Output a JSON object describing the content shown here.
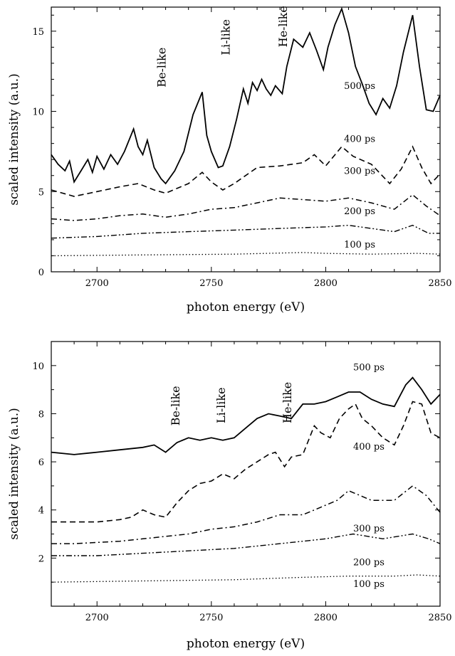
{
  "chart_data": [
    {
      "type": "line",
      "xlabel": "photon energy (eV)",
      "ylabel": "scaled intensity (a.u.)",
      "xlim": [
        2680,
        2850
      ],
      "ylim": [
        0,
        16.5
      ],
      "xticks": [
        2700,
        2750,
        2800,
        2850
      ],
      "yticks": [
        0,
        5,
        10,
        15
      ],
      "annotations": [
        {
          "text": "Be-like",
          "x": 2730,
          "y": 11.5
        },
        {
          "text": "Li-like",
          "x": 2758,
          "y": 13.5
        },
        {
          "text": "He-like",
          "x": 2783,
          "y": 14.0
        }
      ],
      "series": [
        {
          "name": "500 ps",
          "label_x": 2808,
          "label_y": 11.4,
          "style": "solid",
          "x": [
            2680,
            2683,
            2686,
            2688,
            2690,
            2693,
            2696,
            2698,
            2700,
            2703,
            2706,
            2709,
            2712,
            2716,
            2718,
            2720,
            2722,
            2725,
            2728,
            2730,
            2734,
            2738,
            2742,
            2746,
            2748,
            2750,
            2753,
            2755,
            2758,
            2761,
            2764,
            2766,
            2768,
            2770,
            2772,
            2774,
            2776,
            2778,
            2781,
            2783,
            2786,
            2790,
            2793,
            2796,
            2799,
            2801,
            2804,
            2807,
            2810,
            2813,
            2816,
            2819,
            2822,
            2825,
            2828,
            2831,
            2834,
            2838,
            2841,
            2844,
            2847,
            2850
          ],
          "y": [
            7.3,
            6.7,
            6.3,
            6.9,
            5.6,
            6.3,
            7.0,
            6.2,
            7.2,
            6.4,
            7.3,
            6.7,
            7.5,
            8.9,
            7.8,
            7.3,
            8.2,
            6.5,
            5.8,
            5.5,
            6.3,
            7.5,
            9.8,
            11.2,
            8.5,
            7.5,
            6.5,
            6.6,
            7.8,
            9.5,
            11.4,
            10.5,
            11.8,
            11.3,
            12.0,
            11.4,
            11.0,
            11.6,
            11.1,
            12.8,
            14.5,
            14.0,
            14.9,
            13.8,
            12.6,
            14.0,
            15.4,
            16.4,
            14.9,
            12.8,
            11.7,
            10.5,
            9.8,
            10.8,
            10.2,
            11.6,
            13.7,
            16.0,
            12.8,
            10.1,
            10.0,
            11.0
          ]
        },
        {
          "name": "400 ps",
          "label_x": 2808,
          "label_y": 8.1,
          "style": "dash",
          "x": [
            2680,
            2690,
            2700,
            2710,
            2718,
            2725,
            2730,
            2740,
            2746,
            2750,
            2755,
            2760,
            2765,
            2770,
            2780,
            2790,
            2795,
            2800,
            2807,
            2812,
            2820,
            2828,
            2833,
            2838,
            2842,
            2846,
            2850
          ],
          "y": [
            5.1,
            4.7,
            5.0,
            5.3,
            5.5,
            5.1,
            4.9,
            5.5,
            6.2,
            5.6,
            5.1,
            5.5,
            6.0,
            6.5,
            6.6,
            6.8,
            7.3,
            6.6,
            7.8,
            7.2,
            6.7,
            5.5,
            6.4,
            7.8,
            6.5,
            5.5,
            6.1
          ]
        },
        {
          "name": "300 ps",
          "label_x": 2808,
          "label_y": 6.1,
          "style": "dashdot",
          "x": [
            2680,
            2690,
            2700,
            2710,
            2720,
            2730,
            2740,
            2750,
            2760,
            2770,
            2780,
            2790,
            2800,
            2810,
            2820,
            2830,
            2838,
            2844,
            2850
          ],
          "y": [
            3.3,
            3.2,
            3.3,
            3.5,
            3.6,
            3.4,
            3.6,
            3.9,
            4.0,
            4.3,
            4.6,
            4.5,
            4.4,
            4.6,
            4.3,
            3.9,
            4.8,
            4.1,
            3.5
          ]
        },
        {
          "name": "200 ps",
          "label_x": 2808,
          "label_y": 3.6,
          "style": "dashdotdot",
          "x": [
            2680,
            2700,
            2720,
            2740,
            2760,
            2780,
            2800,
            2810,
            2820,
            2830,
            2838,
            2845,
            2850
          ],
          "y": [
            2.1,
            2.2,
            2.4,
            2.5,
            2.6,
            2.7,
            2.8,
            2.9,
            2.7,
            2.5,
            2.9,
            2.4,
            2.4
          ]
        },
        {
          "name": "100 ps",
          "label_x": 2808,
          "label_y": 1.5,
          "style": "dot",
          "x": [
            2680,
            2720,
            2760,
            2790,
            2800,
            2820,
            2840,
            2850
          ],
          "y": [
            1.0,
            1.05,
            1.1,
            1.2,
            1.15,
            1.1,
            1.15,
            1.1
          ]
        }
      ]
    },
    {
      "type": "line",
      "xlabel": "photon energy (eV)",
      "ylabel": "scaled intensity (a.u.)",
      "xlim": [
        2680,
        2850
      ],
      "ylim": [
        0,
        11
      ],
      "xticks": [
        2700,
        2750,
        2800,
        2850
      ],
      "yticks": [
        2,
        4,
        6,
        8,
        10
      ],
      "annotations": [
        {
          "text": "Be-like",
          "x": 2736,
          "y": 7.5
        },
        {
          "text": "Li-like",
          "x": 2756,
          "y": 7.6
        },
        {
          "text": "He-like",
          "x": 2785,
          "y": 7.6
        }
      ],
      "series": [
        {
          "name": "500 ps",
          "label_x": 2812,
          "label_y": 9.8,
          "style": "solid",
          "x": [
            2680,
            2690,
            2700,
            2710,
            2720,
            2725,
            2730,
            2735,
            2740,
            2745,
            2750,
            2755,
            2760,
            2765,
            2770,
            2775,
            2780,
            2785,
            2790,
            2795,
            2800,
            2805,
            2810,
            2815,
            2820,
            2825,
            2830,
            2835,
            2838,
            2842,
            2846,
            2850
          ],
          "y": [
            6.4,
            6.3,
            6.4,
            6.5,
            6.6,
            6.7,
            6.4,
            6.8,
            7.0,
            6.9,
            7.0,
            6.9,
            7.0,
            7.4,
            7.8,
            8.0,
            7.9,
            7.8,
            8.4,
            8.4,
            8.5,
            8.7,
            8.9,
            8.9,
            8.6,
            8.4,
            8.3,
            9.2,
            9.5,
            9.0,
            8.4,
            8.8
          ]
        },
        {
          "name": "400 ps",
          "label_x": 2812,
          "label_y": 6.5,
          "style": "dash",
          "x": [
            2680,
            2690,
            2700,
            2710,
            2715,
            2720,
            2725,
            2730,
            2735,
            2740,
            2745,
            2750,
            2755,
            2760,
            2765,
            2770,
            2775,
            2778,
            2782,
            2785,
            2790,
            2795,
            2798,
            2802,
            2806,
            2810,
            2813,
            2816,
            2820,
            2825,
            2830,
            2834,
            2838,
            2842,
            2846,
            2850
          ],
          "y": [
            3.5,
            3.5,
            3.5,
            3.6,
            3.7,
            4.0,
            3.8,
            3.7,
            4.3,
            4.8,
            5.1,
            5.2,
            5.5,
            5.3,
            5.7,
            6.0,
            6.3,
            6.4,
            5.8,
            6.2,
            6.3,
            7.5,
            7.2,
            7.0,
            7.8,
            8.2,
            8.4,
            7.8,
            7.5,
            7.0,
            6.7,
            7.5,
            8.5,
            8.4,
            7.2,
            7.0
          ]
        },
        {
          "name": "300 ps",
          "label_x": 2812,
          "label_y": 3.1,
          "style": "dashdot",
          "x": [
            2680,
            2690,
            2700,
            2710,
            2720,
            2730,
            2740,
            2750,
            2760,
            2770,
            2780,
            2790,
            2800,
            2805,
            2810,
            2815,
            2820,
            2830,
            2838,
            2844,
            2850
          ],
          "y": [
            2.6,
            2.6,
            2.65,
            2.7,
            2.8,
            2.9,
            3.0,
            3.2,
            3.3,
            3.5,
            3.8,
            3.8,
            4.2,
            4.4,
            4.8,
            4.6,
            4.4,
            4.4,
            5.0,
            4.6,
            3.9
          ]
        },
        {
          "name": "200 ps",
          "label_x": 2812,
          "label_y": 1.7,
          "style": "dashdotdot",
          "x": [
            2680,
            2700,
            2720,
            2740,
            2760,
            2780,
            2800,
            2812,
            2825,
            2838,
            2845,
            2850
          ],
          "y": [
            2.1,
            2.1,
            2.2,
            2.3,
            2.4,
            2.6,
            2.8,
            3.0,
            2.8,
            3.0,
            2.8,
            2.6
          ]
        },
        {
          "name": "100 ps",
          "label_x": 2812,
          "label_y": 0.8,
          "style": "dot",
          "x": [
            2680,
            2720,
            2760,
            2790,
            2810,
            2830,
            2840,
            2850
          ],
          "y": [
            1.0,
            1.05,
            1.1,
            1.2,
            1.25,
            1.25,
            1.3,
            1.25
          ]
        }
      ]
    }
  ]
}
